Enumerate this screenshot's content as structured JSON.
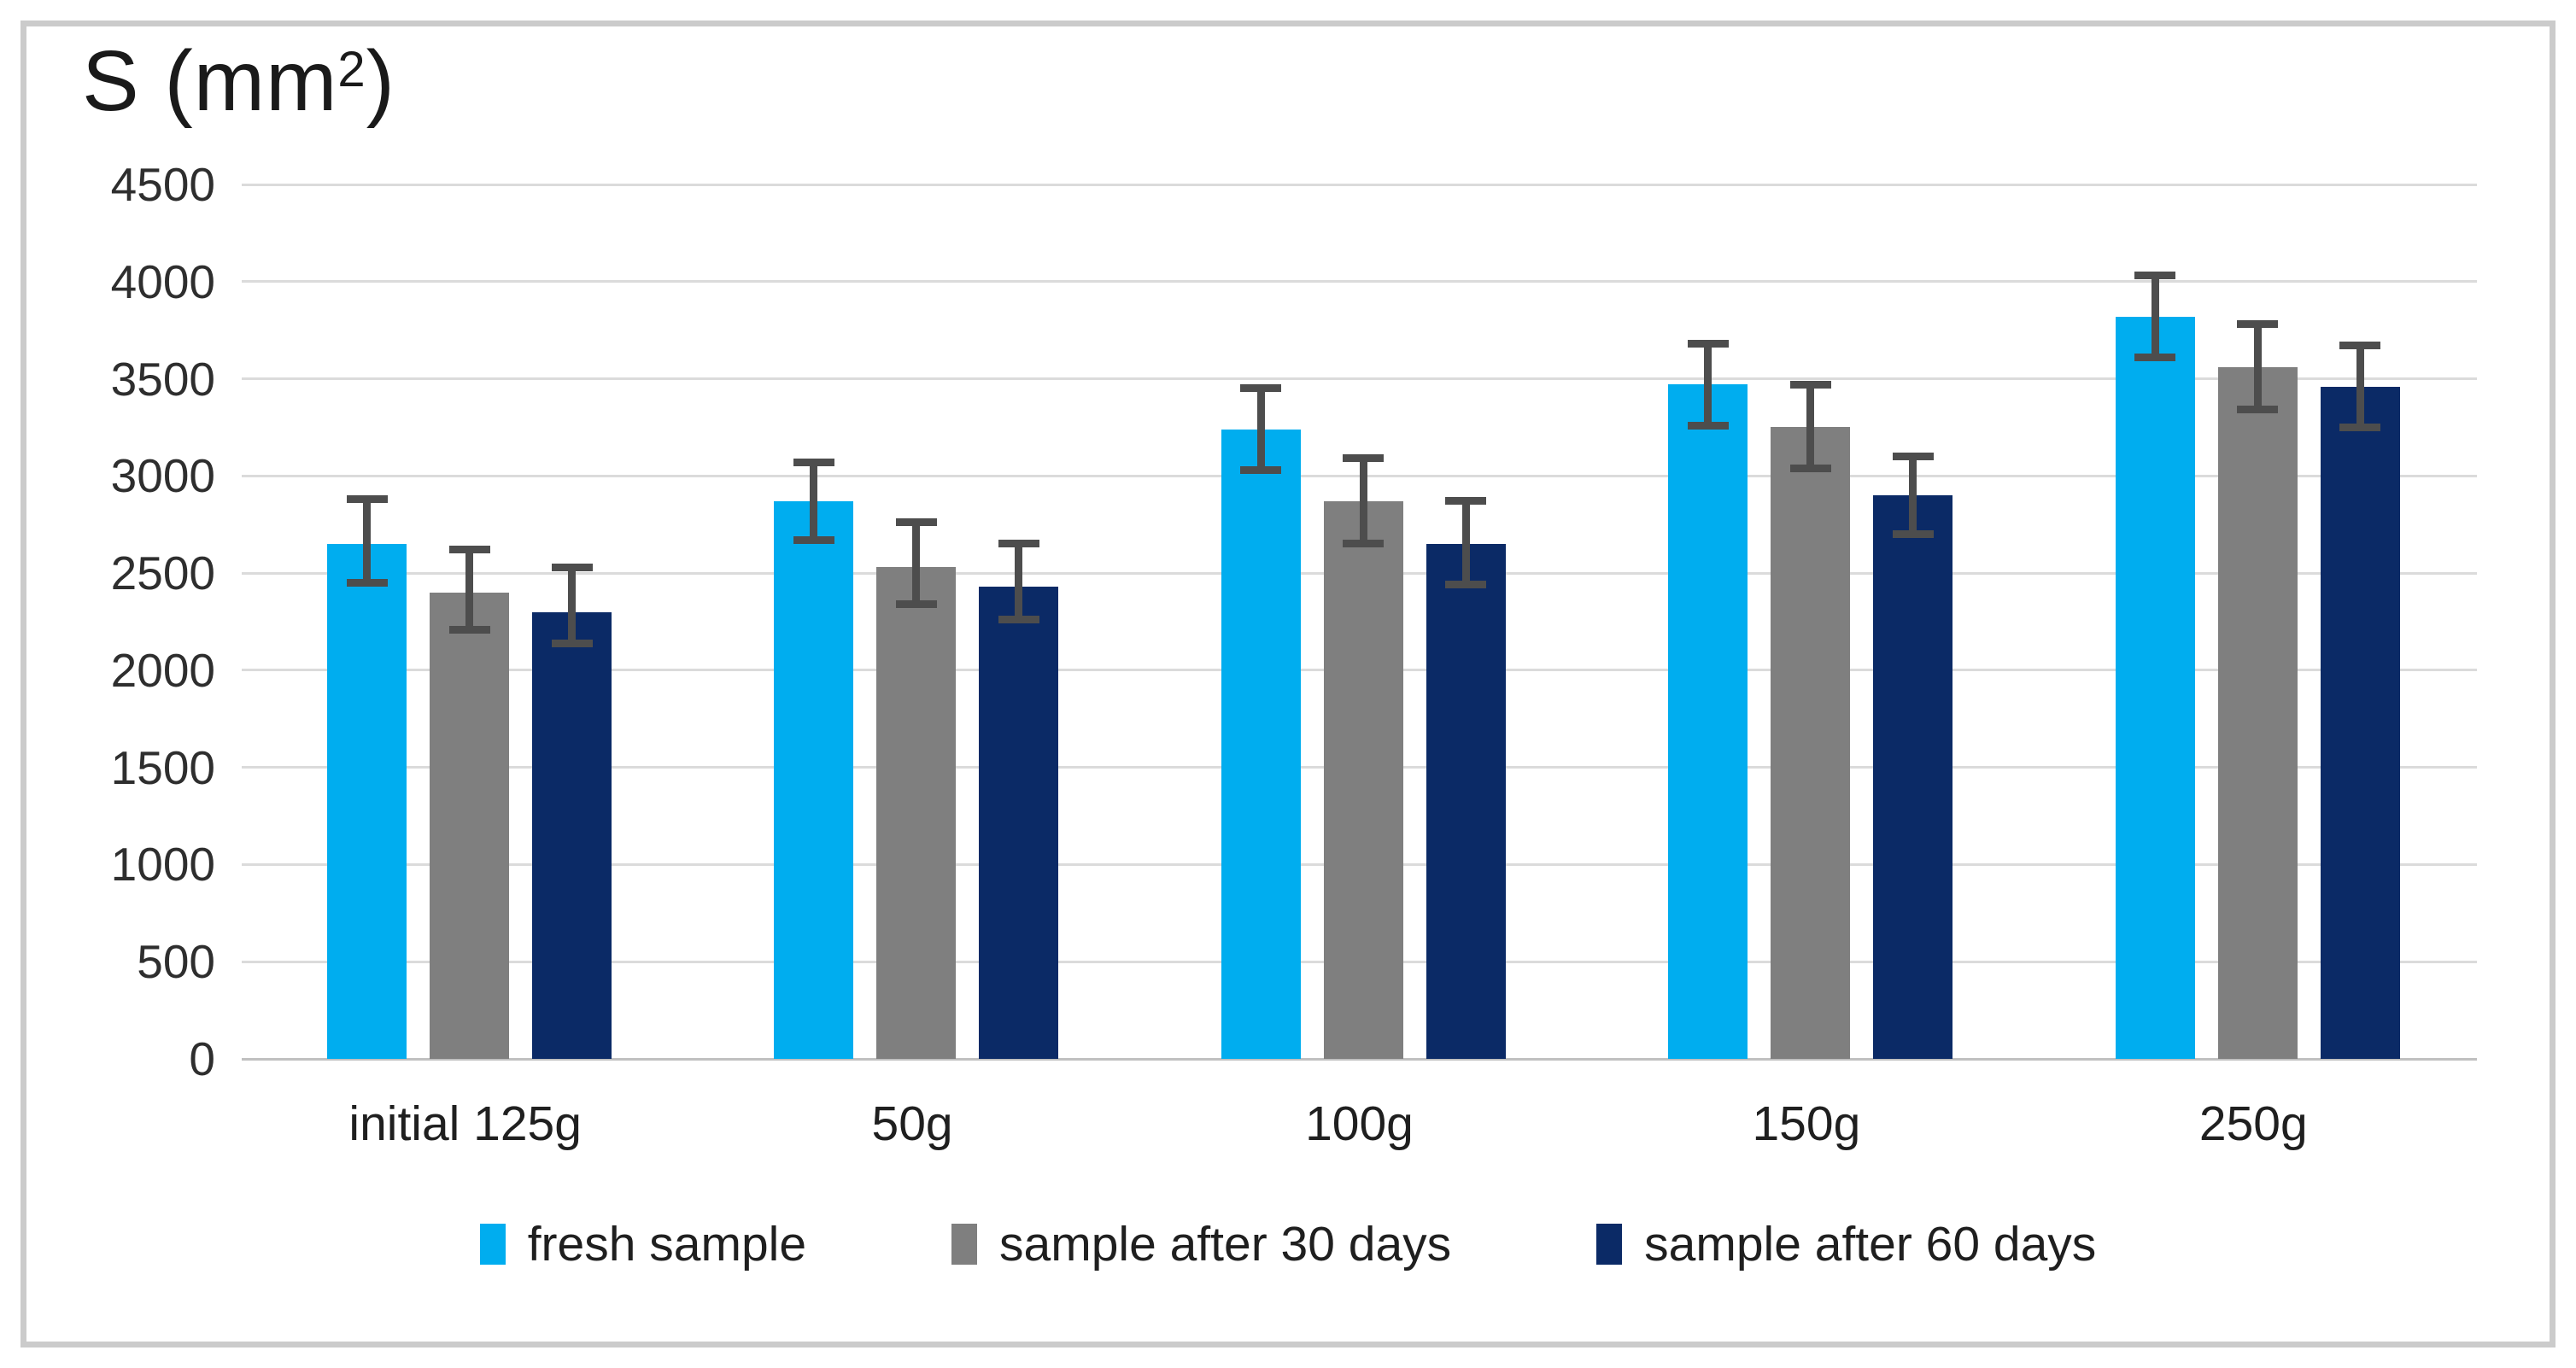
{
  "chart_data": {
    "type": "bar",
    "title": {
      "text": "S (mm²)",
      "prefix": "S (mm",
      "sup": "2",
      "suffix": ")"
    },
    "categories": [
      "initial 125g",
      "50g",
      "100g",
      "150g",
      "250g"
    ],
    "series": [
      {
        "name": "fresh sample",
        "color": "#00ADEF",
        "values": [
          2650,
          2870,
          3240,
          3470,
          3820
        ],
        "error_low": [
          2450,
          2670,
          3030,
          3260,
          3610
        ],
        "error_high": [
          2880,
          3070,
          3450,
          3680,
          4030
        ]
      },
      {
        "name": "sample after 30 days",
        "color": "#7F7F7F",
        "values": [
          2400,
          2530,
          2870,
          3250,
          3560
        ],
        "error_low": [
          2210,
          2340,
          2650,
          3040,
          3340
        ],
        "error_high": [
          2620,
          2760,
          3090,
          3470,
          3780
        ]
      },
      {
        "name": "sample after 60 days",
        "color": "#0B2A66",
        "values": [
          2300,
          2430,
          2650,
          2900,
          3460
        ],
        "error_low": [
          2140,
          2260,
          2440,
          2700,
          3250
        ],
        "error_high": [
          2530,
          2650,
          2870,
          3100,
          3670
        ]
      }
    ],
    "ylim": [
      0,
      4500
    ],
    "ytick_step": 500,
    "yticks": [
      "4500",
      "4000",
      "3500",
      "3000",
      "2500",
      "2000",
      "1500",
      "1000",
      "500",
      "0"
    ],
    "grid": true,
    "legend_position": "bottom",
    "error_bar_color": "#4D4D4D",
    "gridline_color": "#DBDBDB",
    "axis_line_color": "#C0C0C0",
    "frame_border_color": "#CBCBCB"
  }
}
